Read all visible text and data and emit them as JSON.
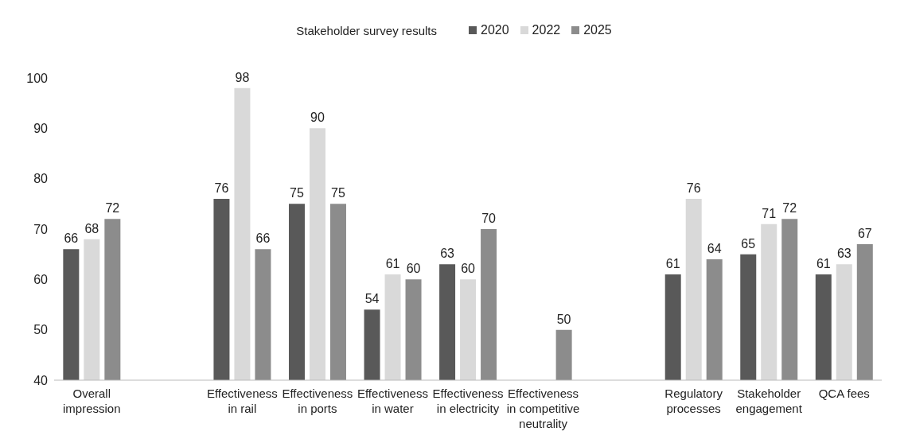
{
  "chart_data": {
    "type": "bar",
    "title": "Stakeholder survey results",
    "categories": [
      "Overall impression",
      null,
      "Effectiveness in rail",
      "Effectiveness in ports",
      "Effectiveness in water",
      "Effectiveness in electricity",
      "Effectiveness in competitive neutrality",
      null,
      "Regulatory processes",
      "Stakeholder engagement",
      "QCA fees"
    ],
    "series": [
      {
        "name": "2020",
        "color": "#595959",
        "values": [
          66,
          null,
          76,
          75,
          54,
          63,
          null,
          null,
          61,
          65,
          61
        ]
      },
      {
        "name": "2022",
        "color": "#d9d9d9",
        "values": [
          68,
          null,
          98,
          90,
          61,
          60,
          null,
          null,
          76,
          71,
          63
        ]
      },
      {
        "name": "2025",
        "color": "#8c8c8c",
        "values": [
          72,
          null,
          66,
          75,
          60,
          70,
          50,
          null,
          64,
          72,
          67
        ]
      }
    ],
    "ylim": [
      40,
      100
    ],
    "yticks": [
      40,
      50,
      60,
      70,
      80,
      90,
      100
    ],
    "grid": false,
    "legend": "top",
    "data_labels": true
  }
}
